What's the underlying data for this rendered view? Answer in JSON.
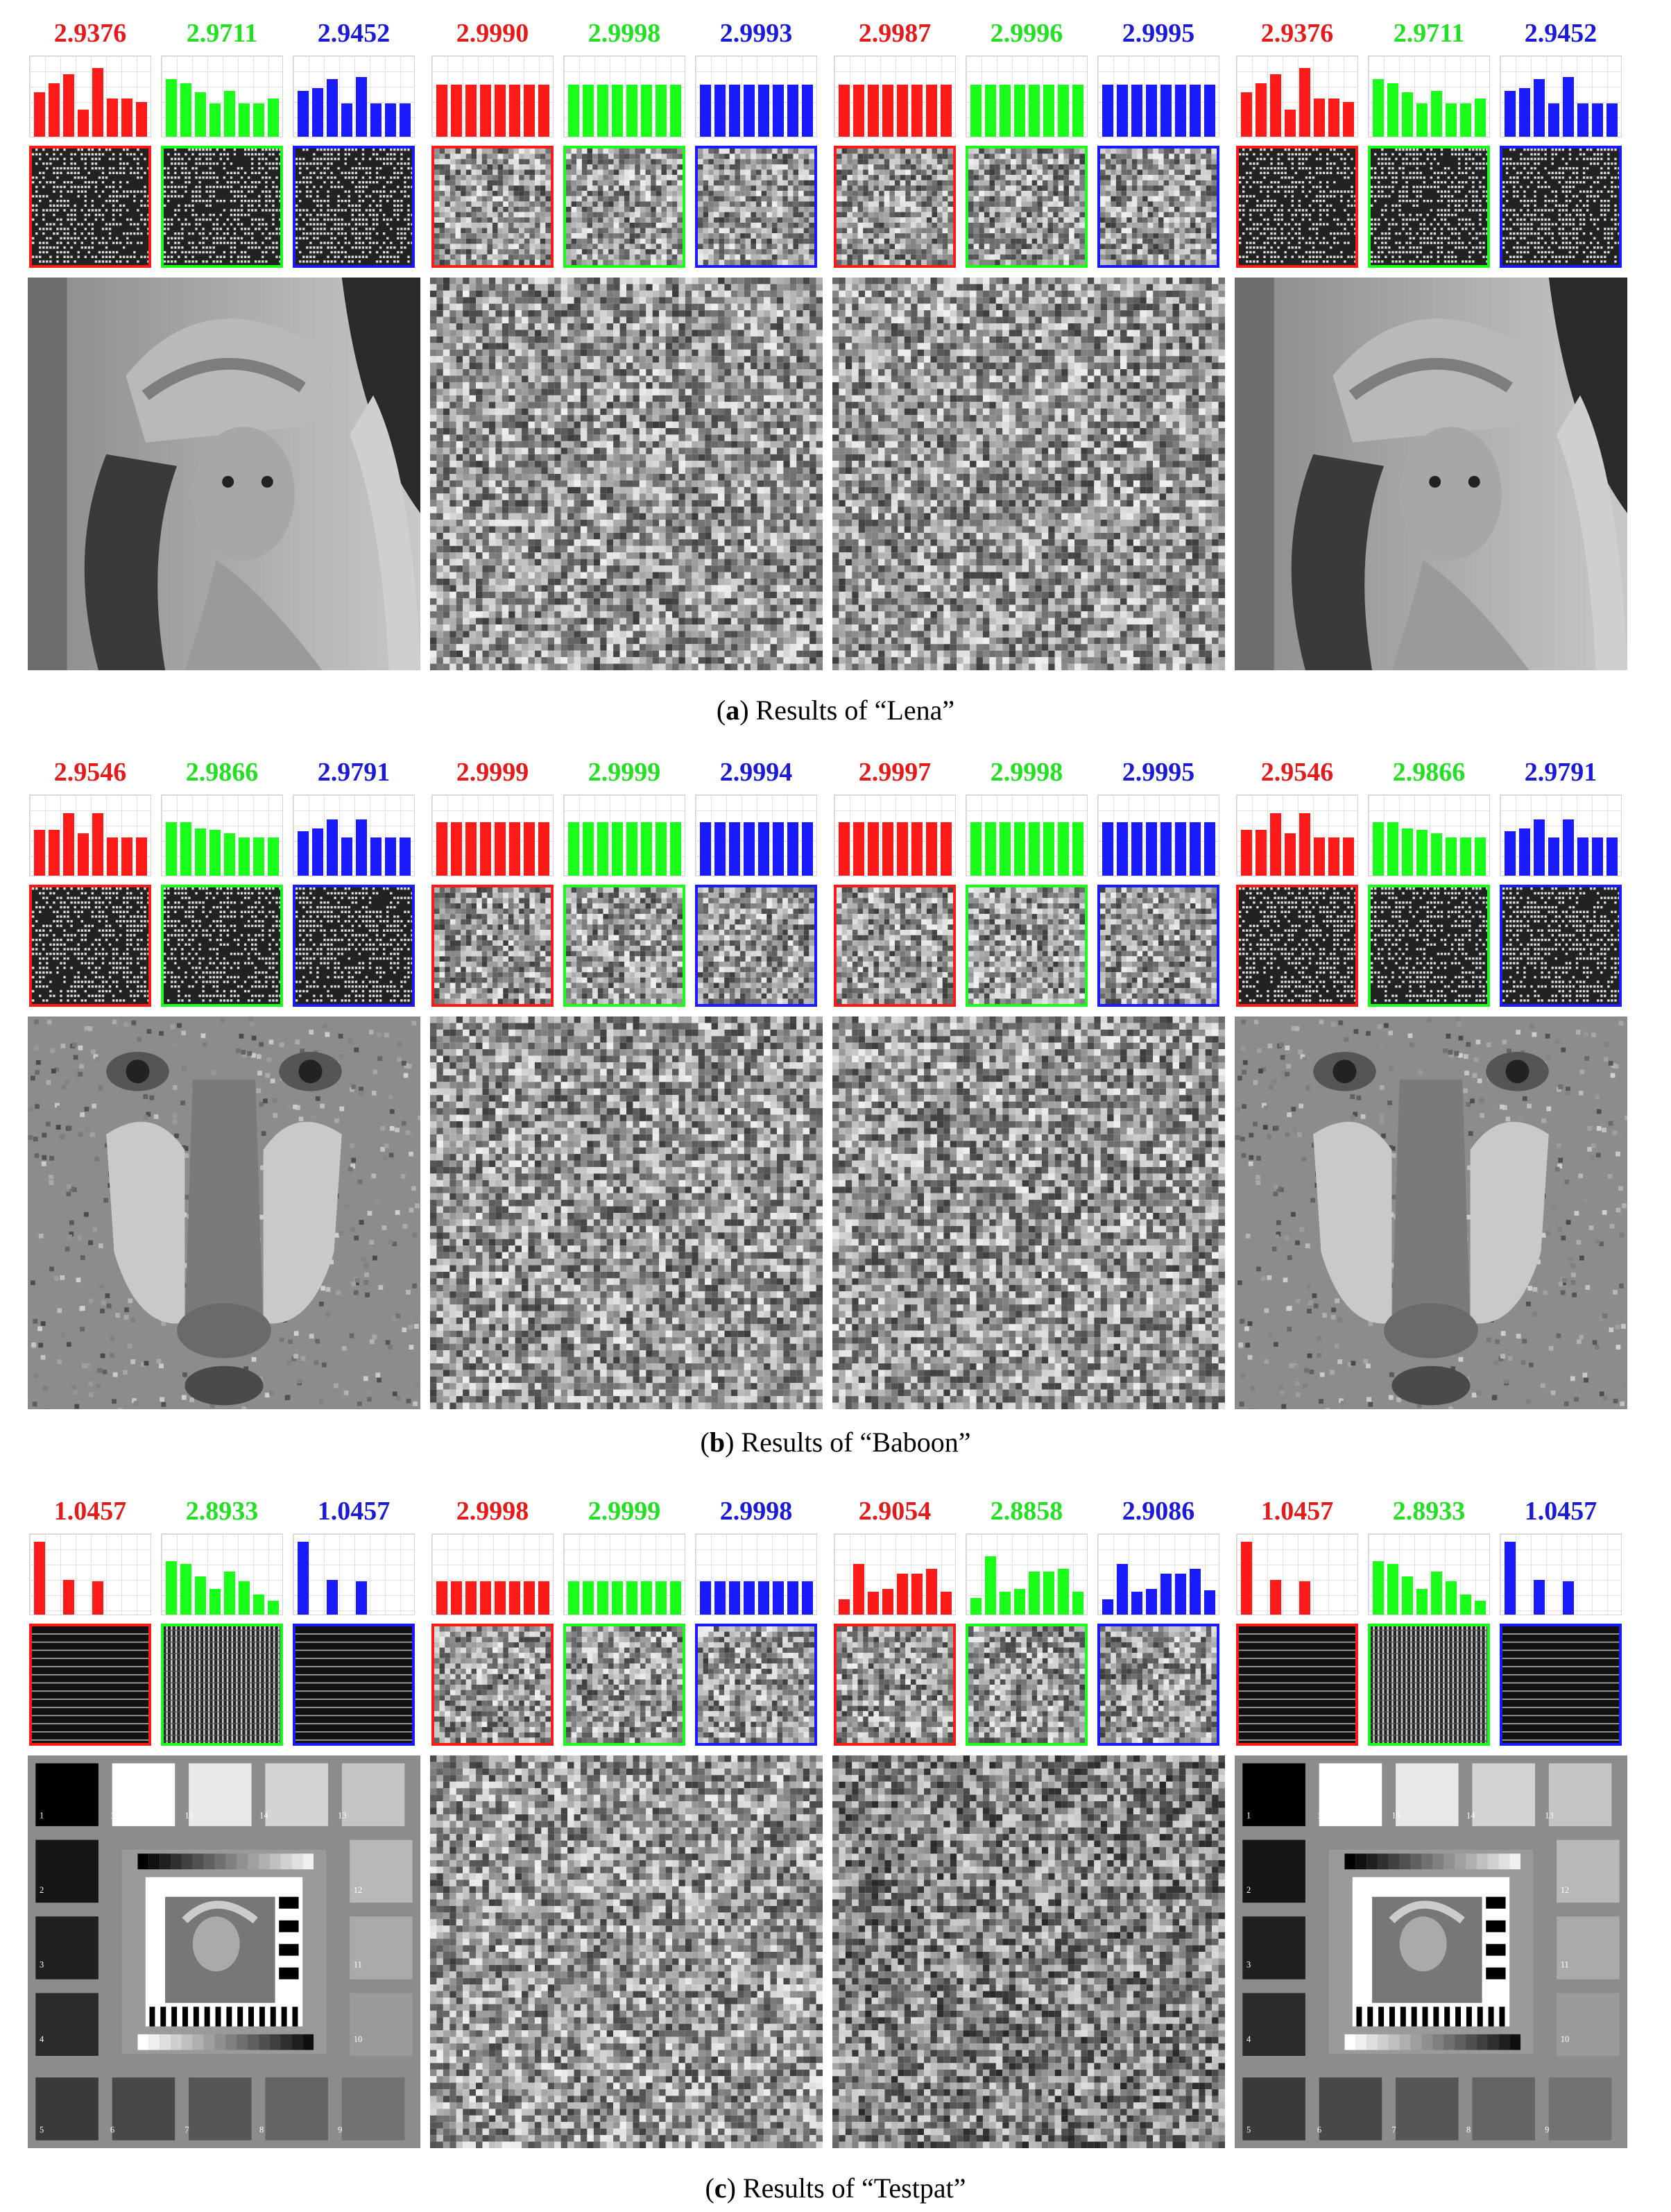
{
  "sections": [
    {
      "id": "a",
      "caption_letter": "a",
      "caption_text": ") Results of “Lena”",
      "groups": [
        {
          "values": [
            "2.9376",
            "2.9711",
            "2.9452"
          ],
          "hist": [
            [
              0.58,
              0.7,
              0.82,
              0.35,
              0.9,
              0.5,
              0.5,
              0.45
            ],
            [
              0.75,
              0.7,
              0.58,
              0.44,
              0.6,
              0.44,
              0.44,
              0.5
            ],
            [
              0.6,
              0.64,
              0.75,
              0.44,
              0.78,
              0.44,
              0.44,
              0.44
            ]
          ],
          "pattern": "plain-stripes",
          "image": "lena"
        },
        {
          "values": [
            "2.9990",
            "2.9998",
            "2.9993"
          ],
          "hist": [
            [
              0.68,
              0.68,
              0.68,
              0.68,
              0.68,
              0.68,
              0.68,
              0.68
            ],
            [
              0.68,
              0.68,
              0.68,
              0.68,
              0.68,
              0.68,
              0.68,
              0.68
            ],
            [
              0.68,
              0.68,
              0.68,
              0.68,
              0.68,
              0.68,
              0.68,
              0.68
            ]
          ],
          "pattern": "noise",
          "image": "noise"
        },
        {
          "values": [
            "2.9987",
            "2.9996",
            "2.9995"
          ],
          "hist": [
            [
              0.68,
              0.68,
              0.68,
              0.68,
              0.68,
              0.68,
              0.68,
              0.68
            ],
            [
              0.68,
              0.68,
              0.68,
              0.68,
              0.68,
              0.68,
              0.68,
              0.68
            ],
            [
              0.68,
              0.68,
              0.68,
              0.68,
              0.68,
              0.68,
              0.68,
              0.68
            ]
          ],
          "pattern": "noise",
          "image": "noise"
        },
        {
          "values": [
            "2.9376",
            "2.9711",
            "2.9452"
          ],
          "hist": [
            [
              0.58,
              0.7,
              0.82,
              0.35,
              0.9,
              0.5,
              0.5,
              0.45
            ],
            [
              0.75,
              0.7,
              0.58,
              0.44,
              0.6,
              0.44,
              0.44,
              0.5
            ],
            [
              0.6,
              0.64,
              0.75,
              0.44,
              0.78,
              0.44,
              0.44,
              0.44
            ]
          ],
          "pattern": "plain-stripes",
          "image": "lena"
        }
      ]
    },
    {
      "id": "b",
      "caption_letter": "b",
      "caption_text": ") Results of “Baboon”",
      "groups": [
        {
          "values": [
            "2.9546",
            "2.9866",
            "2.9791"
          ],
          "hist": [
            [
              0.6,
              0.6,
              0.82,
              0.55,
              0.82,
              0.5,
              0.5,
              0.5
            ],
            [
              0.7,
              0.7,
              0.62,
              0.6,
              0.55,
              0.5,
              0.5,
              0.5
            ],
            [
              0.58,
              0.62,
              0.74,
              0.5,
              0.74,
              0.5,
              0.5,
              0.5
            ]
          ],
          "pattern": "plain-stripes",
          "image": "baboon"
        },
        {
          "values": [
            "2.9999",
            "2.9999",
            "2.9994"
          ],
          "hist": [
            [
              0.7,
              0.7,
              0.7,
              0.7,
              0.7,
              0.7,
              0.7,
              0.7
            ],
            [
              0.7,
              0.7,
              0.7,
              0.7,
              0.7,
              0.7,
              0.7,
              0.7
            ],
            [
              0.7,
              0.7,
              0.7,
              0.7,
              0.7,
              0.7,
              0.7,
              0.7
            ]
          ],
          "pattern": "noise",
          "image": "noise"
        },
        {
          "values": [
            "2.9997",
            "2.9998",
            "2.9995"
          ],
          "hist": [
            [
              0.7,
              0.7,
              0.7,
              0.7,
              0.7,
              0.7,
              0.7,
              0.7
            ],
            [
              0.7,
              0.7,
              0.7,
              0.7,
              0.7,
              0.7,
              0.7,
              0.7
            ],
            [
              0.7,
              0.7,
              0.7,
              0.7,
              0.7,
              0.7,
              0.7,
              0.7
            ]
          ],
          "pattern": "noise",
          "image": "noise"
        },
        {
          "values": [
            "2.9546",
            "2.9866",
            "2.9791"
          ],
          "hist": [
            [
              0.6,
              0.6,
              0.82,
              0.55,
              0.82,
              0.5,
              0.5,
              0.5
            ],
            [
              0.7,
              0.7,
              0.62,
              0.6,
              0.55,
              0.5,
              0.5,
              0.5
            ],
            [
              0.58,
              0.62,
              0.74,
              0.5,
              0.74,
              0.5,
              0.5,
              0.5
            ]
          ],
          "pattern": "plain-stripes",
          "image": "baboon"
        }
      ]
    },
    {
      "id": "c",
      "caption_letter": "c",
      "caption_text": ") Results of “Testpat”",
      "groups": [
        {
          "values": [
            "1.0457",
            "2.8933",
            "1.0457"
          ],
          "hist": [
            [
              0.95,
              0,
              0.45,
              0,
              0.44,
              0,
              0,
              0
            ],
            [
              0.7,
              0.66,
              0.5,
              0.34,
              0.56,
              0.44,
              0.26,
              0.18
            ],
            [
              0.95,
              0,
              0.45,
              0,
              0.44,
              0,
              0,
              0
            ]
          ],
          "pattern": "horizontal-lines",
          "image": "testpat"
        },
        {
          "values": [
            "2.9998",
            "2.9999",
            "2.9998"
          ],
          "hist": [
            [
              0.44,
              0.44,
              0.44,
              0.44,
              0.44,
              0.44,
              0.44,
              0.44
            ],
            [
              0.44,
              0.44,
              0.44,
              0.44,
              0.44,
              0.44,
              0.44,
              0.44
            ],
            [
              0.44,
              0.44,
              0.44,
              0.44,
              0.44,
              0.44,
              0.44,
              0.44
            ]
          ],
          "pattern": "noise",
          "image": "noise"
        },
        {
          "values": [
            "2.9054",
            "2.8858",
            "2.9086"
          ],
          "hist": [
            [
              0.2,
              0.66,
              0.3,
              0.34,
              0.54,
              0.54,
              0.6,
              0.3
            ],
            [
              0.22,
              0.76,
              0.3,
              0.34,
              0.56,
              0.56,
              0.6,
              0.3
            ],
            [
              0.2,
              0.66,
              0.3,
              0.34,
              0.54,
              0.54,
              0.6,
              0.32
            ]
          ],
          "pattern": "noise",
          "image": "noise"
        },
        {
          "values": [
            "1.0457",
            "2.8933",
            "1.0457"
          ],
          "hist": [
            [
              0.95,
              0,
              0.45,
              0,
              0.44,
              0,
              0,
              0
            ],
            [
              0.7,
              0.66,
              0.5,
              0.34,
              0.56,
              0.44,
              0.26,
              0.18
            ],
            [
              0.95,
              0,
              0.45,
              0,
              0.44,
              0,
              0,
              0
            ]
          ],
          "pattern": "horizontal-lines",
          "image": "testpat"
        }
      ]
    }
  ],
  "colors": {
    "red": "#ff1a1a",
    "green": "#1aff1a",
    "blue": "#1a1aff",
    "red_text": "#e51a1a",
    "green_text": "#22e022",
    "blue_text": "#1a1ad8"
  },
  "testpat_labels": [
    "1",
    "16",
    "15",
    "14",
    "13",
    "2",
    "12",
    "3",
    "11",
    "4",
    "10",
    "5",
    "6",
    "7",
    "8",
    "9"
  ]
}
